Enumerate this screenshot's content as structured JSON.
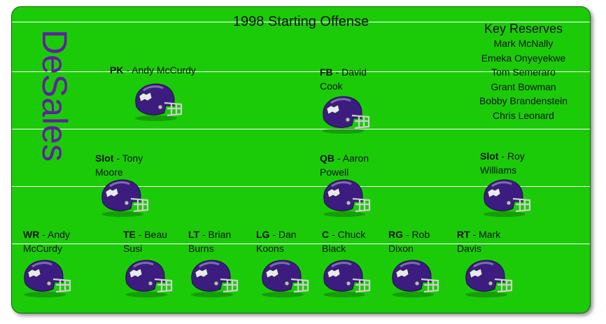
{
  "title": "1998 Starting Offense",
  "team": "DeSales",
  "reserves": {
    "heading": "Key Reserves",
    "names": [
      "Mark McNally",
      "Emeka Onyeyekwe",
      "Tom Semeraro",
      "Grant Bowman",
      "Bobby Brandenstein",
      "Chris Leonard"
    ]
  },
  "players": [
    {
      "id": "pk",
      "pos": "PK",
      "line1": " - Andy McCurdy",
      "line2": ""
    },
    {
      "id": "fb",
      "pos": "FB",
      "line1": " - David",
      "line2": "Cook"
    },
    {
      "id": "slot-left",
      "pos": "Slot",
      "line1": " - Tony",
      "line2": "Moore"
    },
    {
      "id": "qb",
      "pos": "QB",
      "line1": " - Aaron",
      "line2": "Powell"
    },
    {
      "id": "slot-right",
      "pos": "Slot",
      "line1": " - Roy",
      "line2": "Williams"
    },
    {
      "id": "wr",
      "pos": "WR",
      "line1": " - Andy",
      "line2": "McCurdy"
    },
    {
      "id": "te",
      "pos": "TE",
      "line1": " - Beau",
      "line2": "Susi"
    },
    {
      "id": "lt",
      "pos": "LT",
      "line1": " - Brian",
      "line2": "Burns"
    },
    {
      "id": "lg",
      "pos": "LG",
      "line1": " - Dan",
      "line2": "Koons"
    },
    {
      "id": "c",
      "pos": "C",
      "line1": " - Chuck",
      "line2": "Black"
    },
    {
      "id": "rg",
      "pos": "RG",
      "line1": " - Rob",
      "line2": "Dixon"
    },
    {
      "id": "rt",
      "pos": "RT",
      "line1": " - Mark",
      "line2": "Davis"
    }
  ],
  "colors": {
    "field": "#1ccb08",
    "helmet": "#3d1c80",
    "team": "#6020a0"
  }
}
